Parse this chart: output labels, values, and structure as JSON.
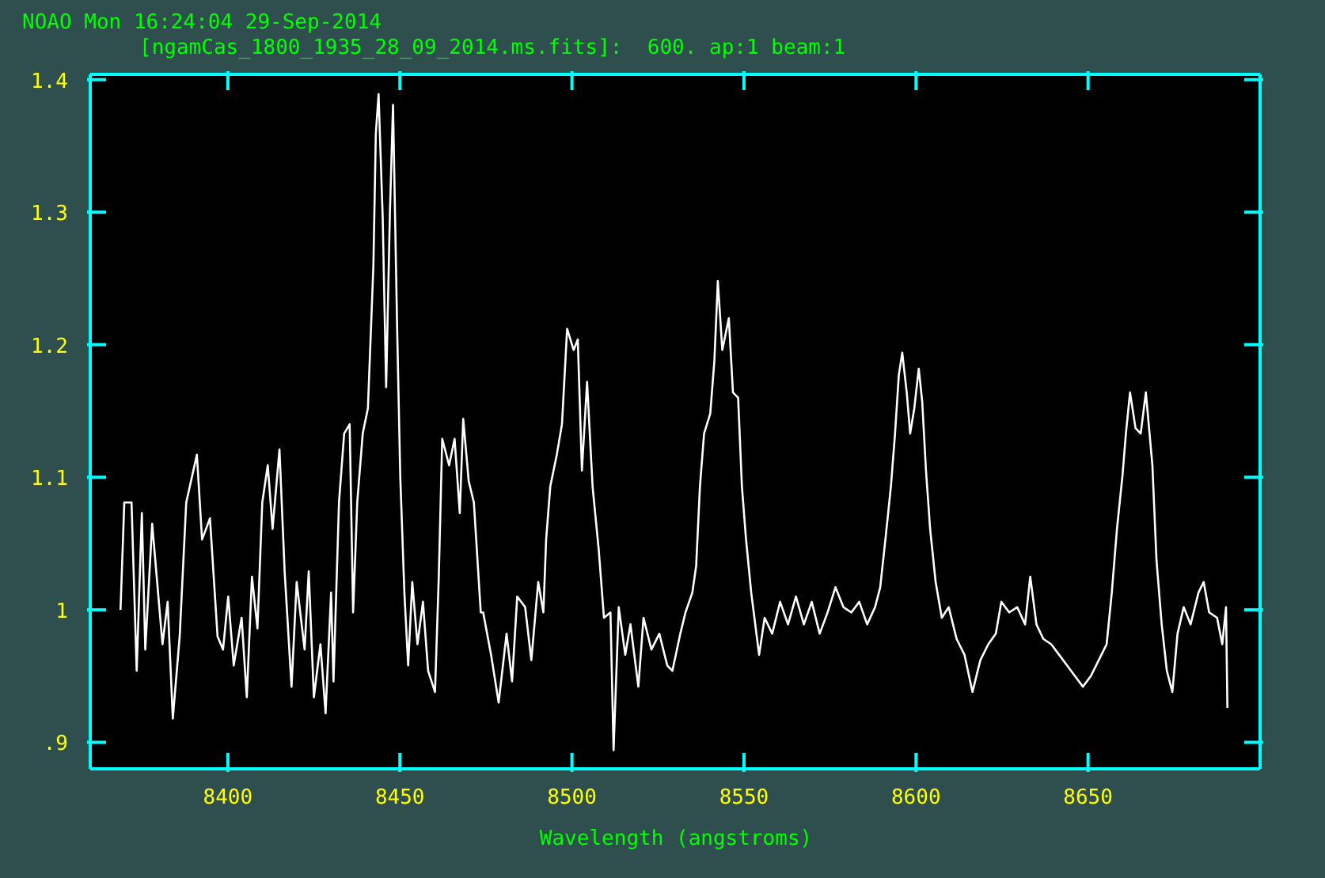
{
  "chart_data": {
    "type": "line",
    "title": "NOAO Mon 16:24:04 29-Sep-2014",
    "subtitle": "[ngamCas_1800_1935_28_09_2014.ms.fits]:  600. ap:1 beam:1",
    "xlabel": "Wavelength (angstroms)",
    "xlim": [
      8360,
      8700
    ],
    "xticks": [
      8400,
      8450,
      8500,
      8550,
      8600,
      8650
    ],
    "ylim": [
      0.88,
      1.404
    ],
    "yticks": [
      {
        "value": 0.9,
        "label": ".9"
      },
      1,
      1.1,
      1.2,
      1.3,
      1.4
    ],
    "series": [
      {
        "color": "#ffffff",
        "x": [
          8368.8,
          8369.9,
          8372,
          8373.5,
          8375,
          8376,
          8378,
          8381,
          8382.5,
          8384,
          8386,
          8387.9,
          8391,
          8392.5,
          8394.8,
          8397,
          8398.6,
          8400.1,
          8401.7,
          8404,
          8405.5,
          8407,
          8408.6,
          8410,
          8411.6,
          8413,
          8415,
          8416.5,
          8418.5,
          8420,
          8422.3,
          8423.5,
          8425,
          8426.9,
          8428.4,
          8430,
          8430.7,
          8432.3,
          8433.8,
          8435.4,
          8436.4,
          8437.6,
          8439.2,
          8440.7,
          8442.3,
          8443,
          8443.8,
          8445,
          8446,
          8447.1,
          8448,
          8449.2,
          8450.1,
          8451.3,
          8452.4,
          8453.6,
          8455.1,
          8456.7,
          8458.2,
          8460.2,
          8461.3,
          8462.3,
          8464.3,
          8465.9,
          8467.4,
          8468.4,
          8470,
          8471.5,
          8473.5,
          8474.2,
          8476.5,
          8478.7,
          8481,
          8482.6,
          8484.1,
          8486.4,
          8488.2,
          8490.2,
          8491.7,
          8492.5,
          8493.7,
          8495.6,
          8497.1,
          8498.6,
          8500.5,
          8501.7,
          8502.9,
          8504.4,
          8506,
          8507.8,
          8509.3,
          8511.2,
          8512.1,
          8513.6,
          8515.5,
          8517,
          8519.3,
          8520.8,
          8523.1,
          8525.4,
          8527.7,
          8529.2,
          8531.5,
          8533,
          8535,
          8536.1,
          8537.2,
          8538.4,
          8540.2,
          8541.4,
          8542.4,
          8543.7,
          8545.6,
          8546.8,
          8548.3,
          8549.4,
          8550.6,
          8552.1,
          8554.4,
          8556,
          8558.2,
          8560.5,
          8562.8,
          8565.1,
          8567.4,
          8569.7,
          8572,
          8574.3,
          8576.6,
          8578.9,
          8581.2,
          8583.5,
          8585.8,
          8588.1,
          8589.6,
          8591.1,
          8592.7,
          8593.9,
          8595,
          8596,
          8597.3,
          8598.3,
          8599.5,
          8600.8,
          8601.8,
          8602.9,
          8604.1,
          8605.7,
          8607.5,
          8609.5,
          8611.8,
          8614.1,
          8616.4,
          8618.7,
          8621,
          8623.2,
          8624.8,
          8627.1,
          8629.4,
          8631.7,
          8633.2,
          8635,
          8637,
          8639.3,
          8641.6,
          8643.9,
          8646.2,
          8648.5,
          8650.8,
          8653.1,
          8655.4,
          8656.9,
          8658.4,
          8660,
          8661,
          8662.2,
          8663.8,
          8665.3,
          8666.8,
          8668.7,
          8669.9,
          8671.4,
          8672.9,
          8674.5,
          8676,
          8677.8,
          8679.8,
          8682.1,
          8683.6,
          8685.2,
          8687.5,
          8689,
          8690.1,
          8690.5
        ],
        "values": [
          1.0,
          1.081,
          1.081,
          0.954,
          1.073,
          0.97,
          1.065,
          0.974,
          1.006,
          0.918,
          0.98,
          1.081,
          1.117,
          1.053,
          1.069,
          0.98,
          0.97,
          1.01,
          0.958,
          0.994,
          0.934,
          1.025,
          0.986,
          1.081,
          1.109,
          1.061,
          1.121,
          1.029,
          0.942,
          1.021,
          0.97,
          1.029,
          0.934,
          0.974,
          0.922,
          1.013,
          0.946,
          1.081,
          1.133,
          1.14,
          0.998,
          1.081,
          1.133,
          1.152,
          1.26,
          1.359,
          1.389,
          1.296,
          1.168,
          1.3,
          1.381,
          1.212,
          1.101,
          1.013,
          0.958,
          1.021,
          0.974,
          1.006,
          0.954,
          0.938,
          1.025,
          1.129,
          1.109,
          1.129,
          1.073,
          1.144,
          1.097,
          1.081,
          0.998,
          0.998,
          0.966,
          0.93,
          0.982,
          0.946,
          1.01,
          1.002,
          0.962,
          1.021,
          0.998,
          1.053,
          1.093,
          1.117,
          1.14,
          1.212,
          1.196,
          1.204,
          1.105,
          1.172,
          1.093,
          1.045,
          0.994,
          0.998,
          0.894,
          1.002,
          0.966,
          0.989,
          0.942,
          0.994,
          0.97,
          0.982,
          0.958,
          0.954,
          0.982,
          0.998,
          1.013,
          1.033,
          1.093,
          1.133,
          1.148,
          1.188,
          1.248,
          1.196,
          1.22,
          1.164,
          1.16,
          1.093,
          1.053,
          1.013,
          0.966,
          0.994,
          0.982,
          1.006,
          0.989,
          1.01,
          0.989,
          1.006,
          0.982,
          0.998,
          1.017,
          1.002,
          0.998,
          1.006,
          0.989,
          1.002,
          1.017,
          1.053,
          1.093,
          1.133,
          1.177,
          1.194,
          1.164,
          1.133,
          1.152,
          1.182,
          1.157,
          1.105,
          1.061,
          1.021,
          0.994,
          1.002,
          0.978,
          0.966,
          0.938,
          0.962,
          0.974,
          0.982,
          1.006,
          0.998,
          1.002,
          0.989,
          1.025,
          0.989,
          0.978,
          0.974,
          0.966,
          0.958,
          0.95,
          0.942,
          0.95,
          0.962,
          0.974,
          1.013,
          1.061,
          1.101,
          1.133,
          1.164,
          1.137,
          1.133,
          1.164,
          1.109,
          1.037,
          0.989,
          0.954,
          0.938,
          0.982,
          1.002,
          0.989,
          1.013,
          1.021,
          0.998,
          0.994,
          0.974,
          1.002,
          0.926
        ]
      }
    ]
  }
}
